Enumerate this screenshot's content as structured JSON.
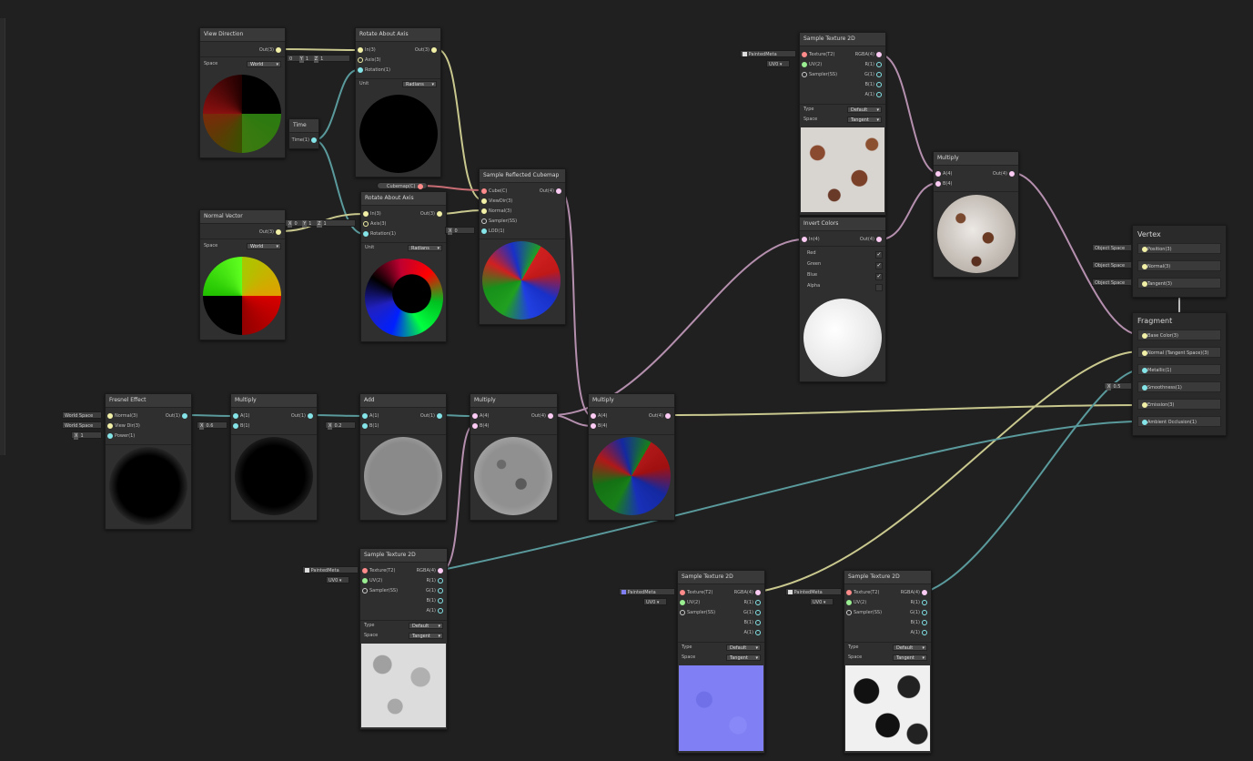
{
  "nodes": {
    "view_direction": {
      "title": "View Direction",
      "out": "Out(3)",
      "space_label": "Space",
      "space_value": "World"
    },
    "rotate_axis_1": {
      "title": "Rotate About Axis",
      "in": "In(3)",
      "axis": "Axis(3)",
      "rotation": "Rotation(1)",
      "out": "Out(3)",
      "unit_label": "Unit",
      "unit_value": "Radians",
      "axis_x": "0",
      "axis_y": "1",
      "axis_z": "1"
    },
    "time": {
      "title": "Time",
      "out": "Time(1)"
    },
    "normal_vector": {
      "title": "Normal Vector",
      "out": "Out(3)",
      "space_label": "Space",
      "space_value": "World"
    },
    "rotate_axis_2": {
      "title": "Rotate About Axis",
      "in": "In(3)",
      "axis": "Axis(3)",
      "rotation": "Rotation(1)",
      "out": "Out(3)",
      "unit_label": "Unit",
      "unit_value": "Radians",
      "axis_x": "0",
      "axis_y": "1",
      "axis_z": "1"
    },
    "cubemap_prop": {
      "label": "Cubemap(C)"
    },
    "reflected_cubemap": {
      "title": "Sample Reflected Cubemap",
      "cube": "Cube(C)",
      "viewdir": "ViewDir(3)",
      "normal": "Normal(3)",
      "sampler": "Sampler(SS)",
      "lod": "LOD(1)",
      "out": "Out(4)",
      "lod_x": "0"
    },
    "sample_tex_top": {
      "title": "Sample Texture 2D",
      "texture": "Texture(T2)",
      "uv": "UV(2)",
      "sampler": "Sampler(SS)",
      "rgba": "RGBA(4)",
      "r": "R(1)",
      "g": "G(1)",
      "b": "B(1)",
      "a": "A(1)",
      "type_label": "Type",
      "type_value": "Default",
      "space_label": "Space",
      "space_value": "Tangent",
      "tex_name": "PaintedMeta",
      "uv_value": "UV0"
    },
    "invert_colors": {
      "title": "Invert Colors",
      "in": "In(4)",
      "out": "Out(4)",
      "red": "Red",
      "green": "Green",
      "blue": "Blue",
      "alpha": "Alpha",
      "red_check": "✓",
      "green_check": "✓",
      "blue_check": "✓"
    },
    "multiply_top": {
      "title": "Multiply",
      "a": "A(4)",
      "b": "B(4)",
      "out": "Out(4)"
    },
    "fresnel": {
      "title": "Fresnel Effect",
      "normal": "Normal(3)",
      "viewdir": "View Dir(3)",
      "power": "Power(1)",
      "out": "Out(1)",
      "normal_in": "World Space",
      "viewdir_in": "World Space",
      "power_x": "1"
    },
    "multiply_1": {
      "title": "Multiply",
      "a": "A(1)",
      "b": "B(1)",
      "out": "Out(1)",
      "b_x": "0.6"
    },
    "add": {
      "title": "Add",
      "a": "A(1)",
      "b": "B(1)",
      "out": "Out(1)",
      "b_x": "0.2"
    },
    "multiply_2": {
      "title": "Multiply",
      "a": "A(4)",
      "b": "B(4)",
      "out": "Out(4)"
    },
    "multiply_3": {
      "title": "Multiply",
      "a": "A(4)",
      "b": "B(4)",
      "out": "Out(4)"
    },
    "sample_tex_bottom": {
      "title": "Sample Texture 2D",
      "texture": "Texture(T2)",
      "uv": "UV(2)",
      "sampler": "Sampler(SS)",
      "rgba": "RGBA(4)",
      "r": "R(1)",
      "g": "G(1)",
      "b": "B(1)",
      "a": "A(1)",
      "type_label": "Type",
      "type_value": "Default",
      "space_label": "Space",
      "space_value": "Tangent",
      "tex_name": "PaintedMeta",
      "uv_value": "UV0"
    },
    "sample_tex_normal": {
      "title": "Sample Texture 2D",
      "texture": "Texture(T2)",
      "uv": "UV(2)",
      "sampler": "Sampler(SS)",
      "rgba": "RGBA(4)",
      "r": "R(1)",
      "g": "G(1)",
      "b": "B(1)",
      "a": "A(1)",
      "type_label": "Type",
      "type_value": "Default",
      "space_label": "Space",
      "space_value": "Tangent",
      "tex_name": "PaintedMeta",
      "uv_value": "UV0"
    },
    "sample_tex_mask": {
      "title": "Sample Texture 2D",
      "texture": "Texture(T2)",
      "uv": "UV(2)",
      "sampler": "Sampler(SS)",
      "rgba": "RGBA(4)",
      "r": "R(1)",
      "g": "G(1)",
      "b": "B(1)",
      "a": "A(1)",
      "type_label": "Type",
      "type_value": "Default",
      "space_label": "Space",
      "space_value": "Tangent",
      "tex_name": "PaintedMeta",
      "uv_value": "UV0"
    }
  },
  "master": {
    "vertex_title": "Vertex",
    "vertex_slots": [
      {
        "label": "Position(3)",
        "input": "Object Space"
      },
      {
        "label": "Normal(3)",
        "input": "Object Space"
      },
      {
        "label": "Tangent(3)",
        "input": "Object Space"
      }
    ],
    "fragment_title": "Fragment",
    "fragment_slots": [
      {
        "label": "Base Color(3)"
      },
      {
        "label": "Normal (Tangent Space)(3)"
      },
      {
        "label": "Metallic(1)"
      },
      {
        "label": "Smoothness(1)",
        "input_x": "0.5"
      },
      {
        "label": "Emission(3)"
      },
      {
        "label": "Ambient Occlusion(1)"
      }
    ]
  },
  "colors": {
    "vec3": "#f1f0a6",
    "vec1": "#84e4e7",
    "vec4": "#fbcbf4",
    "texture": "#ff8b8b",
    "background": "#202020"
  }
}
